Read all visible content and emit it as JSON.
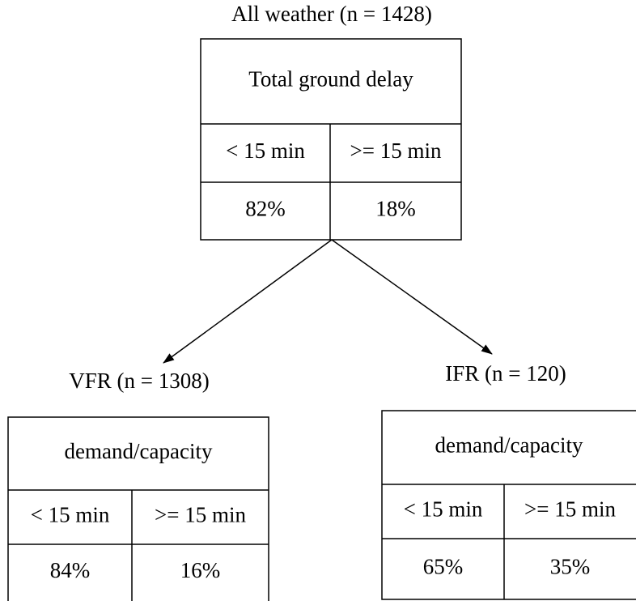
{
  "nodes": [
    {
      "title": "All weather (n = 1428)",
      "header": "Total ground delay",
      "columns": [
        "< 15 min",
        ">= 15 min"
      ],
      "values": [
        "82%",
        "18%"
      ]
    },
    {
      "title": "VFR (n = 1308)",
      "header": "demand/capacity",
      "columns": [
        "< 15 min",
        ">= 15 min"
      ],
      "values": [
        "84%",
        "16%"
      ]
    },
    {
      "title": "IFR (n = 120)",
      "header": "demand/capacity",
      "columns": [
        "< 15 min",
        ">= 15 min"
      ],
      "values": [
        "65%",
        "35%"
      ]
    }
  ]
}
